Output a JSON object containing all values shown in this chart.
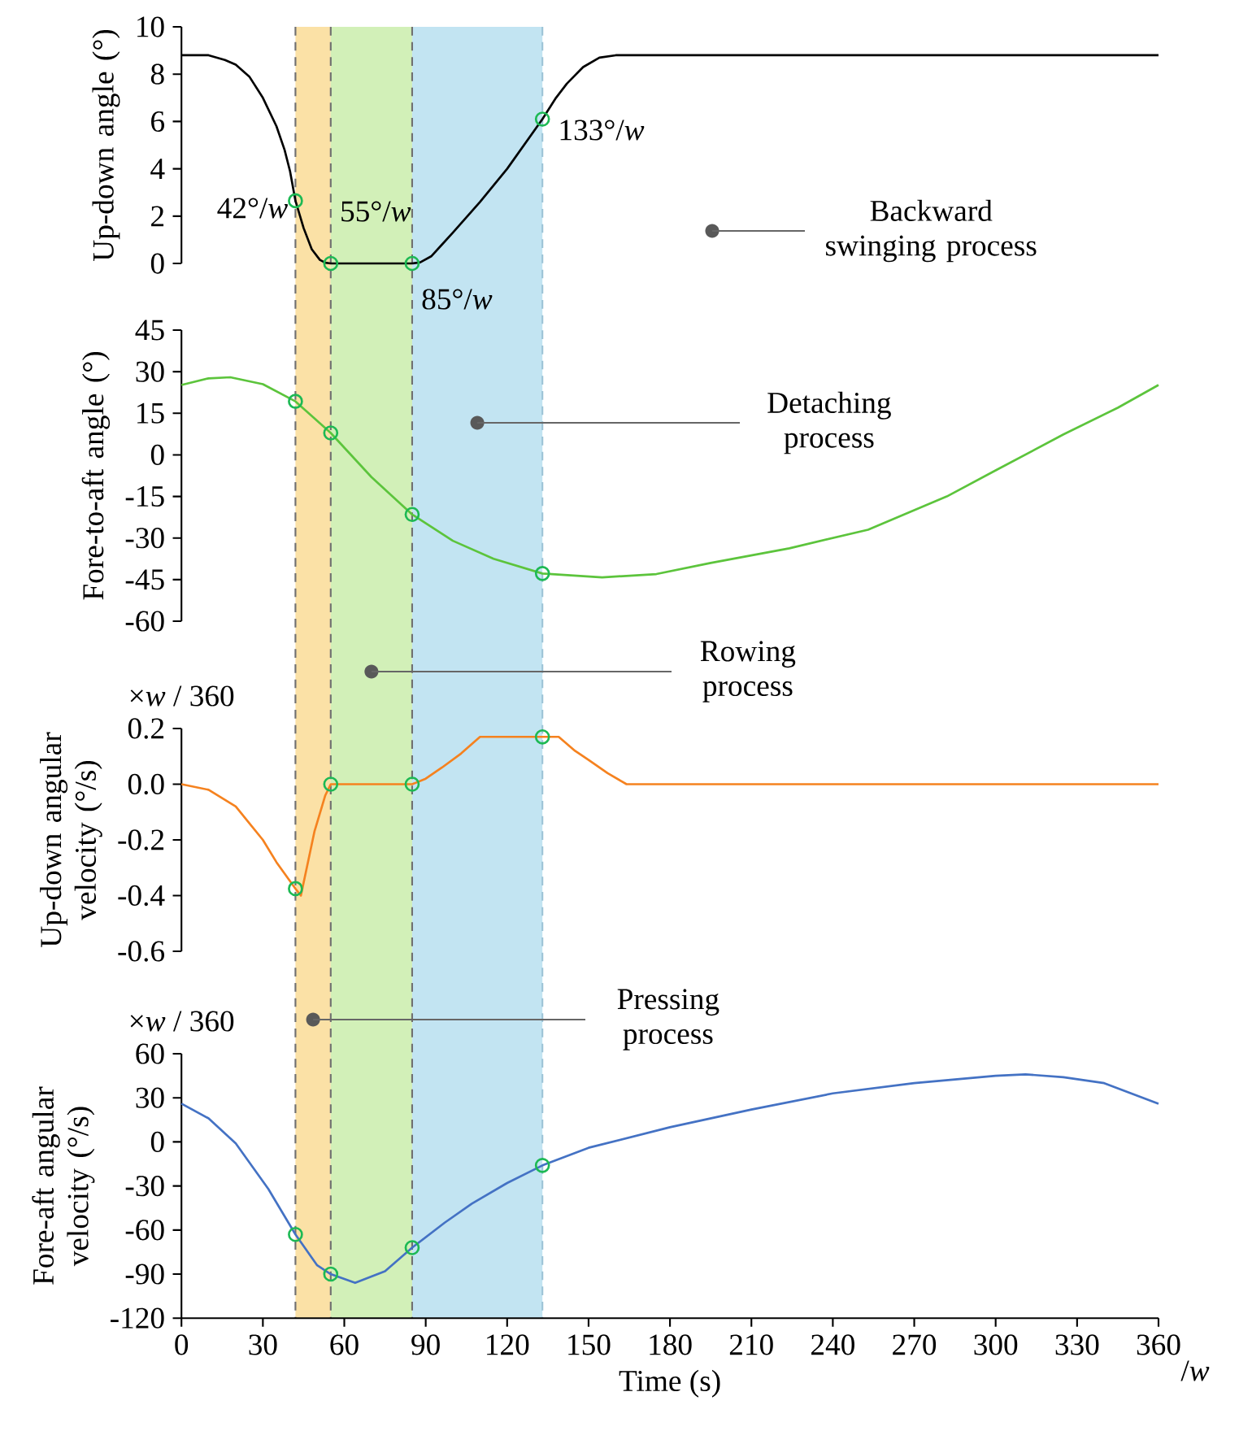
{
  "chart_data": [
    {
      "type": "line",
      "ylabel": "Up-down angle (°)",
      "xlim": [
        0,
        360
      ],
      "ylim": [
        0,
        10
      ],
      "yticks": [
        0,
        2,
        4,
        6,
        8,
        10
      ],
      "tick_labels": "y",
      "series": [
        {
          "color": "#000000",
          "x": [
            0,
            10,
            16,
            20,
            25,
            30,
            35,
            38,
            40,
            42,
            45,
            48,
            51,
            53,
            55,
            85,
            88,
            92,
            96,
            100,
            110,
            120,
            133,
            138,
            142,
            148,
            154,
            160,
            360
          ],
          "values": [
            8.8,
            8.8,
            8.6,
            8.4,
            7.9,
            7.0,
            5.8,
            4.8,
            3.9,
            2.65,
            1.5,
            0.6,
            0.15,
            0.03,
            0,
            0,
            0.05,
            0.3,
            0.8,
            1.3,
            2.6,
            4.0,
            6.1,
            7.0,
            7.6,
            8.3,
            8.7,
            8.8,
            8.8
          ]
        },
        {
          "type": "scatter",
          "marker": "circle",
          "color": "#1db954",
          "x": [
            42,
            55,
            85,
            133
          ],
          "values": [
            2.65,
            0,
            0,
            6.1
          ]
        }
      ],
      "bands": [
        {
          "axis": "x",
          "from": 42,
          "to": 55,
          "label": "Pressing process",
          "color": "#fbe1a6"
        },
        {
          "axis": "x",
          "from": 55,
          "to": 85,
          "label": "Rowing process",
          "color": "#d2f0b8"
        },
        {
          "axis": "x",
          "from": 85,
          "to": 133,
          "label": "Detaching process",
          "color": "#c2e4f2"
        }
      ],
      "ref_lines": [
        {
          "axis": "x",
          "value": 42,
          "label": "42°/*w*",
          "color": "#707070",
          "line_style": "dashed"
        },
        {
          "axis": "x",
          "value": 55,
          "label": "55°/*w*",
          "color": "#707070",
          "line_style": "dashed"
        },
        {
          "axis": "x",
          "value": 85,
          "label": "85°/*w*",
          "color": "#707070",
          "line_style": "dashed"
        },
        {
          "axis": "x",
          "value": 133,
          "label": "133°/*w*",
          "color": "#9cc3d6",
          "line_style": "dashed"
        }
      ],
      "annotations": [
        "Backward swinging process"
      ]
    },
    {
      "type": "line",
      "ylabel": "Fore-to-aft angle (°)",
      "xlim": [
        0,
        360
      ],
      "ylim": [
        -60,
        45
      ],
      "yticks": [
        -60,
        -45,
        -30,
        -15,
        0,
        15,
        30,
        45
      ],
      "tick_labels": "y",
      "series": [
        {
          "color": "#5cc43c",
          "x": [
            0,
            10,
            18,
            30,
            42,
            55,
            70,
            85,
            100,
            115,
            133,
            155,
            175,
            195,
            224,
            253,
            282,
            300,
            325,
            345,
            360
          ],
          "values": [
            25.2,
            27.6,
            28,
            25.5,
            19.3,
            7.9,
            -8,
            -21.5,
            -31,
            -37.5,
            -42.8,
            -44.2,
            -43,
            -39,
            -33.7,
            -27,
            -15,
            -5.6,
            7.4,
            17,
            25.2
          ]
        },
        {
          "type": "scatter",
          "marker": "circle",
          "color": "#1db954",
          "x": [
            42,
            55,
            85,
            133
          ],
          "values": [
            19.3,
            7.9,
            -21.5,
            -42.8
          ]
        }
      ]
    },
    {
      "type": "line",
      "ylabel": "Up-down angular velocity (°/s)",
      "xlim": [
        0,
        360
      ],
      "ylim": [
        -0.6,
        0.2
      ],
      "yticks": [
        -0.6,
        -0.4,
        -0.2,
        {
          "value": 0,
          "label": "0.0"
        },
        0.2
      ],
      "tick_labels": "y",
      "series": [
        {
          "color": "#f5821f",
          "x": [
            0,
            10,
            20,
            30,
            35,
            42,
            44,
            49,
            53,
            55,
            85,
            90,
            96,
            103,
            110,
            133,
            139,
            145,
            150,
            157,
            164,
            360
          ],
          "values": [
            0,
            -0.02,
            -0.08,
            -0.2,
            -0.28,
            -0.375,
            -0.4,
            -0.17,
            -0.04,
            0,
            0,
            0.02,
            0.06,
            0.11,
            0.17,
            0.17,
            0.17,
            0.12,
            0.087,
            0.04,
            0,
            0
          ]
        },
        {
          "type": "scatter",
          "marker": "circle",
          "color": "#1db954",
          "x": [
            42,
            55,
            85,
            133
          ],
          "values": [
            -0.375,
            0,
            0,
            0.17
          ]
        }
      ],
      "annotations": [
        "×*w* / 360"
      ]
    },
    {
      "type": "line",
      "ylabel": "Fore-aft angular velocity (°/s)",
      "xlabel": "Time (s)",
      "xlim": [
        0,
        360
      ],
      "xticks": [
        0,
        30,
        60,
        90,
        120,
        150,
        180,
        210,
        240,
        270,
        300,
        330,
        360
      ],
      "ylim": [
        -120,
        60
      ],
      "yticks": [
        -120,
        -90,
        -60,
        -30,
        0,
        30,
        60
      ],
      "series": [
        {
          "color": "#4472c4",
          "x": [
            0,
            10,
            20,
            32,
            42,
            50,
            55,
            64,
            75,
            85,
            97,
            107,
            120,
            133,
            150,
            180,
            210,
            240,
            270,
            300,
            311,
            325,
            340,
            360
          ],
          "values": [
            26,
            16,
            -1,
            -32,
            -63,
            -84,
            -90,
            -96,
            -88,
            -72,
            -55,
            -42,
            -28,
            -16,
            -4,
            10,
            22,
            33,
            40,
            45,
            46,
            44,
            40,
            26
          ]
        },
        {
          "type": "scatter",
          "marker": "circle",
          "color": "#1db954",
          "x": [
            42,
            55,
            85,
            133
          ],
          "values": [
            -63,
            -90,
            -72,
            -16
          ]
        }
      ],
      "annotations": [
        "×*w* / 360",
        "/*w*"
      ]
    }
  ]
}
